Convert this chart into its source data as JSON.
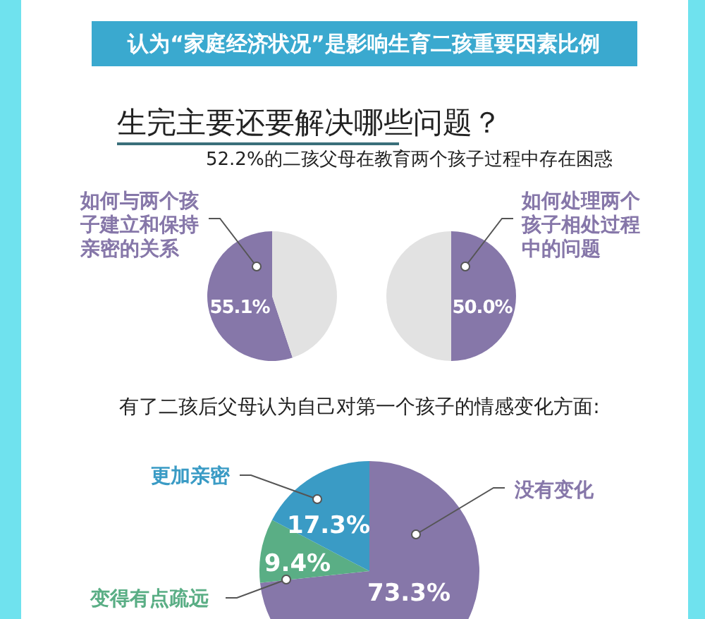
{
  "chart_data": [
    {
      "type": "pie",
      "title": "认为“家庭经济状况”是影响生育二孩重要因素比例",
      "subtitle": "生完主要还要解决哪些问题？",
      "annotations": [
        "52.2%的二孩父母在教育两个孩子过程中存在困惑"
      ],
      "categories": [
        "如何与两个孩子建立和保持亲密的关系",
        null
      ],
      "values": [
        55.1,
        44.9
      ],
      "colors": [
        "#8677a9",
        "#e2e2e2"
      ],
      "value_labels": [
        "55.1%",
        null
      ]
    },
    {
      "type": "pie",
      "categories": [
        "如何处理两个孩子相处过程中的问题",
        null
      ],
      "values": [
        50.0,
        50.0
      ],
      "colors": [
        "#8677a9",
        "#e2e2e2"
      ],
      "value_labels": [
        "50.0%",
        null
      ]
    },
    {
      "type": "pie",
      "title": "有了二孩后父母认为自己对第一个孩子的情感变化方面:",
      "categories": [
        "没有变化",
        "变得有点疏远",
        "更加亲密"
      ],
      "values": [
        73.3,
        9.4,
        17.3
      ],
      "colors": [
        "#8677a9",
        "#5aae85",
        "#3a9bc5"
      ],
      "value_labels": [
        "73.3%",
        "9.4%",
        "17.3%"
      ]
    }
  ]
}
